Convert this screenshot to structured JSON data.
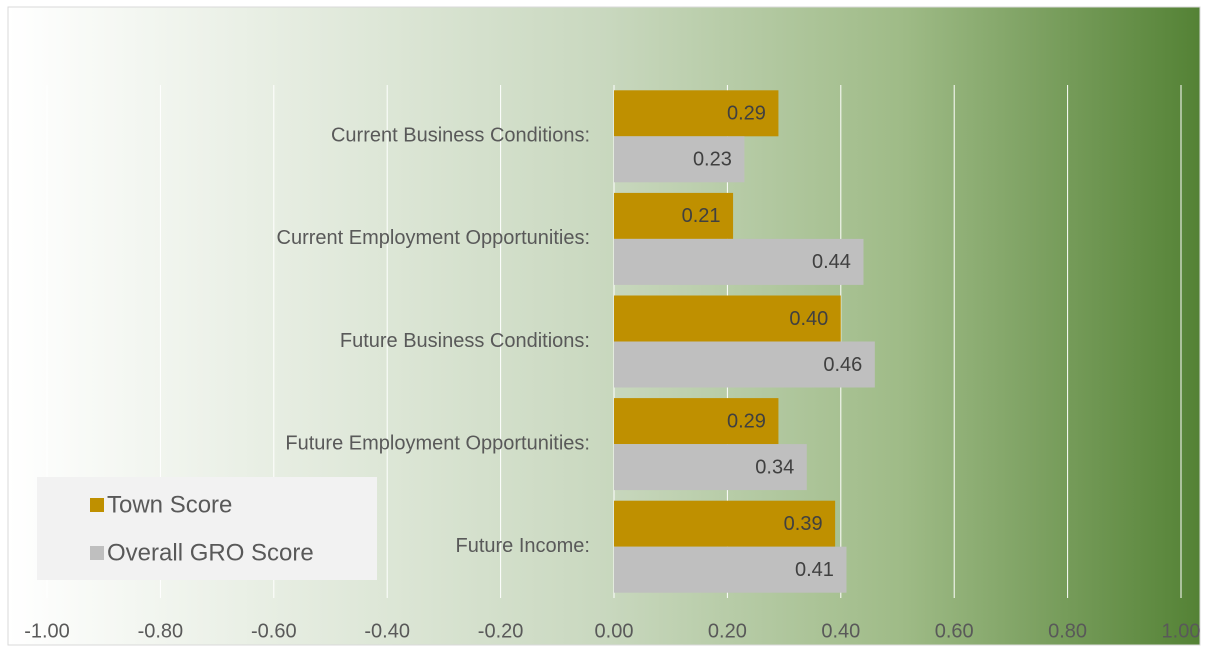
{
  "chart_data": {
    "type": "barh",
    "categories": [
      "Current Business Conditions:",
      "Current Employment Opportunities:",
      "Future Business Conditions:",
      "Future Employment Opportunities:",
      "Future Income:"
    ],
    "series": [
      {
        "name": "Town Score",
        "color": "#bf9000",
        "values": [
          0.29,
          0.21,
          0.4,
          0.29,
          0.39
        ],
        "value_labels": [
          "0.29",
          "0.21",
          "0.40",
          "0.29",
          "0.39"
        ]
      },
      {
        "name": "Overall GRO Score",
        "color": "#bfbfbf",
        "values": [
          0.23,
          0.44,
          0.46,
          0.34,
          0.41
        ],
        "value_labels": [
          "0.23",
          "0.44",
          "0.46",
          "0.34",
          "0.41"
        ]
      }
    ],
    "xlim": [
      -1,
      1
    ],
    "xticks": [
      {
        "value": -1,
        "label": "-1.00"
      },
      {
        "value": -0.8,
        "label": "-0.80"
      },
      {
        "value": -0.6,
        "label": "-0.60"
      },
      {
        "value": -0.4,
        "label": "-0.40"
      },
      {
        "value": -0.2,
        "label": "-0.20"
      },
      {
        "value": 0,
        "label": "0.00"
      },
      {
        "value": 0.2,
        "label": "0.20"
      },
      {
        "value": 0.4,
        "label": "0.40"
      },
      {
        "value": 0.6,
        "label": "0.60"
      },
      {
        "value": 0.8,
        "label": "0.80"
      },
      {
        "value": 1,
        "label": "1.00"
      }
    ],
    "grid": true,
    "legend": "lower-left"
  }
}
